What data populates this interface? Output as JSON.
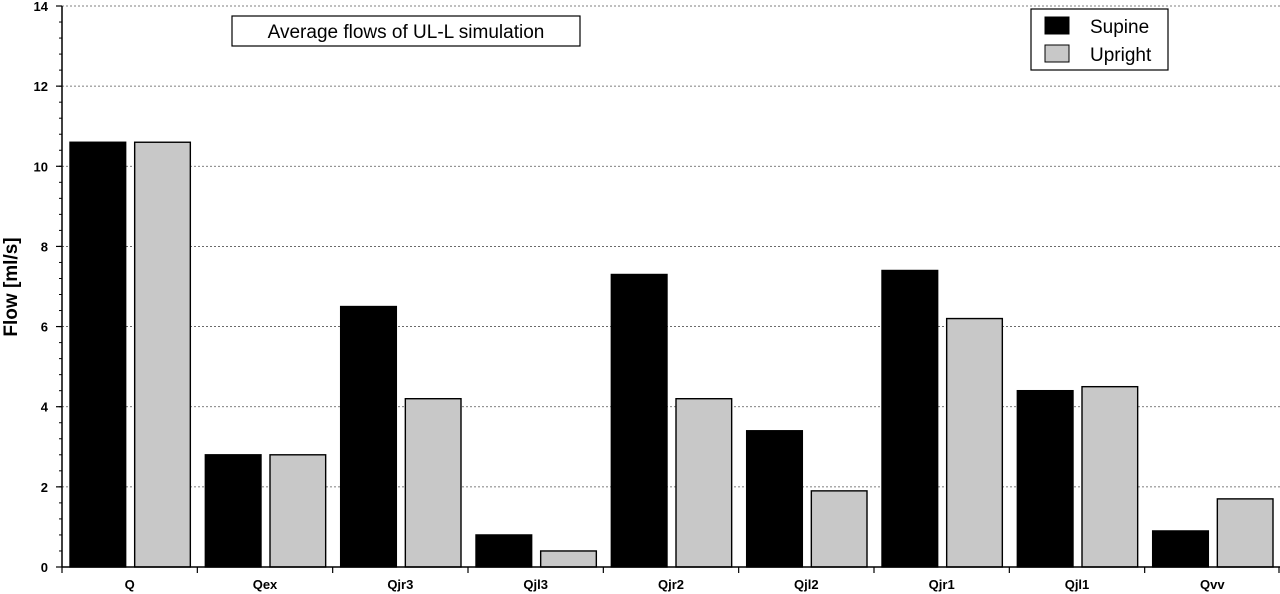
{
  "chart_data": {
    "type": "bar",
    "title": "Average flows of UL-L simulation",
    "xlabel": "",
    "ylabel": "Flow [ml/s]",
    "ylim": [
      0,
      14
    ],
    "yticks": [
      "0",
      "2",
      "4",
      "6",
      "8",
      "10",
      "12",
      "14"
    ],
    "grid": true,
    "legend_position": "top-right",
    "categories": [
      "Q",
      "Qex",
      "Qjr3",
      "Qjl3",
      "Qjr2",
      "Qjl2",
      "Qjr1",
      "Qjl1",
      "Qvv"
    ],
    "series": [
      {
        "name": "Supine",
        "color": "#000000",
        "values": [
          10.6,
          2.8,
          6.5,
          0.8,
          7.3,
          3.4,
          7.4,
          4.4,
          0.9
        ]
      },
      {
        "name": "Upright",
        "color": "#c8c8c8",
        "values": [
          10.6,
          2.8,
          4.2,
          0.4,
          4.2,
          1.9,
          6.2,
          4.5,
          1.7
        ]
      }
    ]
  }
}
